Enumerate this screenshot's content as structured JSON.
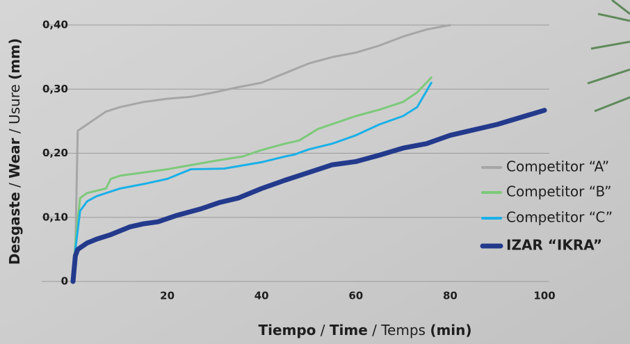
{
  "chart_data": {
    "type": "line",
    "ylabel": [
      "Desgaste",
      " / ",
      "Wear",
      " / Usure ",
      "(mm)"
    ],
    "xlabel": [
      "Tiempo",
      " / ",
      "Time",
      " / Temps ",
      "(min)"
    ],
    "xlim": [
      0,
      100
    ],
    "xticks": [
      20,
      40,
      60,
      80,
      100
    ],
    "ylim": [
      0,
      0.4
    ],
    "yticks": [
      0,
      {
        "value": 0.1,
        "label": "0,10"
      },
      {
        "value": 0.2,
        "label": "0,20"
      },
      {
        "value": 0.3,
        "label": "0,30"
      },
      {
        "value": 0.4,
        "label": "0,40"
      }
    ],
    "grid": true,
    "legend": "right",
    "series": [
      {
        "name": "Competitor “A”",
        "color": "#a6a6a6",
        "x": [
          0,
          0.5,
          1,
          3,
          5,
          7,
          10,
          15,
          20,
          25,
          30,
          35,
          40,
          45,
          50,
          55,
          60,
          65,
          70,
          75,
          80
        ],
        "values": [
          0,
          0.05,
          0.235,
          0.245,
          0.255,
          0.265,
          0.272,
          0.28,
          0.285,
          0.288,
          0.295,
          0.303,
          0.31,
          0.325,
          0.34,
          0.35,
          0.357,
          0.368,
          0.382,
          0.393,
          0.4
        ]
      },
      {
        "name": "Competitor “B”",
        "color": "#7dc97a",
        "x": [
          0,
          0.5,
          1.5,
          3,
          7,
          8,
          10,
          20,
          30,
          36,
          40,
          45,
          48,
          52,
          60,
          65,
          70,
          73,
          76
        ],
        "values": [
          0,
          0.06,
          0.13,
          0.138,
          0.145,
          0.16,
          0.165,
          0.175,
          0.188,
          0.195,
          0.205,
          0.215,
          0.22,
          0.238,
          0.258,
          0.268,
          0.28,
          0.295,
          0.318
        ]
      },
      {
        "name": "Competitor “C”",
        "color": "#1ab0e8",
        "x": [
          0,
          0.5,
          1.5,
          3,
          5,
          10,
          15,
          20,
          25,
          32,
          40,
          45,
          47,
          50,
          55,
          60,
          65,
          70,
          73,
          76
        ],
        "values": [
          0,
          0.05,
          0.11,
          0.125,
          0.133,
          0.145,
          0.152,
          0.16,
          0.175,
          0.176,
          0.186,
          0.195,
          0.198,
          0.206,
          0.215,
          0.228,
          0.245,
          0.258,
          0.272,
          0.31
        ]
      },
      {
        "name": "IZAR “IKRA”",
        "color": "#233a8c",
        "x": [
          0,
          0.5,
          1,
          3,
          5,
          8,
          12,
          15,
          18,
          22,
          27,
          31,
          35,
          40,
          45,
          50,
          55,
          60,
          65,
          70,
          75,
          80,
          90,
          100
        ],
        "values": [
          0,
          0.04,
          0.05,
          0.06,
          0.066,
          0.073,
          0.085,
          0.09,
          0.093,
          0.103,
          0.113,
          0.123,
          0.13,
          0.145,
          0.158,
          0.17,
          0.182,
          0.187,
          0.197,
          0.208,
          0.215,
          0.228,
          0.245,
          0.267
        ]
      }
    ]
  }
}
